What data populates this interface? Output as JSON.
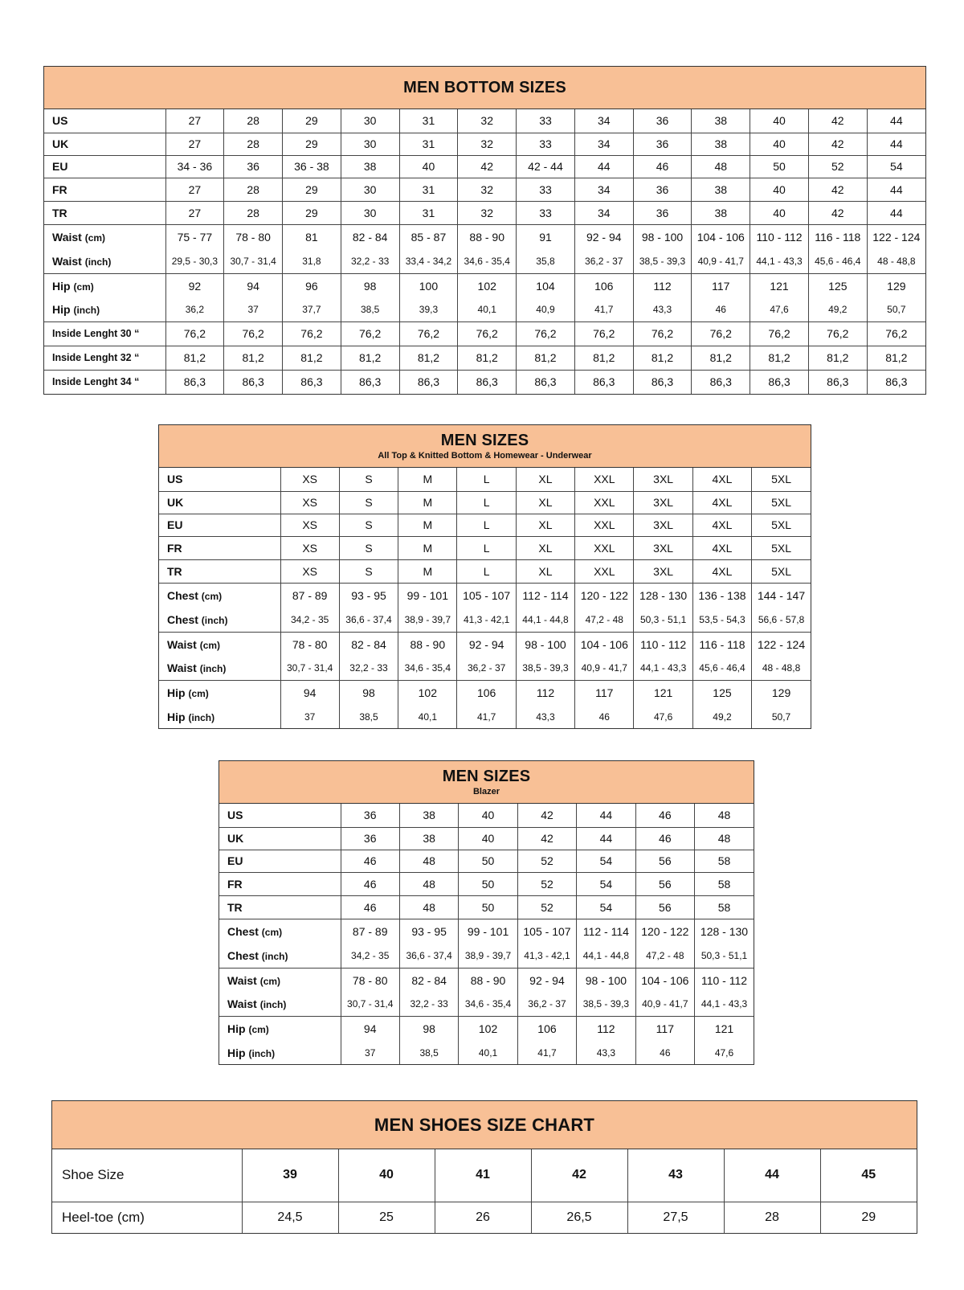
{
  "colors": {
    "header_bg": "#f8c096",
    "border": "#333333"
  },
  "tables": [
    {
      "title": "MEN BOTTOM SIZES",
      "subtitle": "",
      "rows": [
        {
          "label": "US",
          "unit": "",
          "values": [
            "27",
            "28",
            "29",
            "30",
            "31",
            "32",
            "33",
            "34",
            "36",
            "38",
            "40",
            "42",
            "44"
          ]
        },
        {
          "label": "UK",
          "unit": "",
          "values": [
            "27",
            "28",
            "29",
            "30",
            "31",
            "32",
            "33",
            "34",
            "36",
            "38",
            "40",
            "42",
            "44"
          ]
        },
        {
          "label": "EU",
          "unit": "",
          "values": [
            "34 - 36",
            "36",
            "36 - 38",
            "38",
            "40",
            "42",
            "42 - 44",
            "44",
            "46",
            "48",
            "50",
            "52",
            "54"
          ]
        },
        {
          "label": "FR",
          "unit": "",
          "values": [
            "27",
            "28",
            "29",
            "30",
            "31",
            "32",
            "33",
            "34",
            "36",
            "38",
            "40",
            "42",
            "44"
          ]
        },
        {
          "label": "TR",
          "unit": "",
          "values": [
            "27",
            "28",
            "29",
            "30",
            "31",
            "32",
            "33",
            "34",
            "36",
            "38",
            "40",
            "42",
            "44"
          ]
        },
        {
          "label": "Waist",
          "unit": "(cm)",
          "values": [
            "75 - 77",
            "78 - 80",
            "81",
            "82 - 84",
            "85 - 87",
            "88 - 90",
            "91",
            "92 - 94",
            "98 - 100",
            "104 - 106",
            "110 - 112",
            "116 - 118",
            "122 - 124"
          ]
        },
        {
          "label": "Waist",
          "unit": "(inch)",
          "values": [
            "29,5 - 30,3",
            "30,7 - 31,4",
            "31,8",
            "32,2 - 33",
            "33,4  - 34,2",
            "34,6 - 35,4",
            "35,8",
            "36,2 - 37",
            "38,5 - 39,3",
            "40,9 - 41,7",
            "44,1 - 43,3",
            "45,6 - 46,4",
            "48 - 48,8"
          ]
        },
        {
          "label": "Hip",
          "unit": "(cm)",
          "values": [
            "92",
            "94",
            "96",
            "98",
            "100",
            "102",
            "104",
            "106",
            "112",
            "117",
            "121",
            "125",
            "129"
          ]
        },
        {
          "label": "Hip",
          "unit": "(inch)",
          "values": [
            "36,2",
            "37",
            "37,7",
            "38,5",
            "39,3",
            "40,1",
            "40,9",
            "41,7",
            "43,3",
            "46",
            "47,6",
            "49,2",
            "50,7"
          ]
        },
        {
          "label": "Inside Lenght 30 “",
          "unit": "",
          "values": [
            "76,2",
            "76,2",
            "76,2",
            "76,2",
            "76,2",
            "76,2",
            "76,2",
            "76,2",
            "76,2",
            "76,2",
            "76,2",
            "76,2",
            "76,2"
          ]
        },
        {
          "label": "Inside Lenght 32 “",
          "unit": "",
          "values": [
            "81,2",
            "81,2",
            "81,2",
            "81,2",
            "81,2",
            "81,2",
            "81,2",
            "81,2",
            "81,2",
            "81,2",
            "81,2",
            "81,2",
            "81,2"
          ]
        },
        {
          "label": "Inside Lenght 34 “",
          "unit": "",
          "values": [
            "86,3",
            "86,3",
            "86,3",
            "86,3",
            "86,3",
            "86,3",
            "86,3",
            "86,3",
            "86,3",
            "86,3",
            "86,3",
            "86,3",
            "86,3"
          ]
        }
      ]
    },
    {
      "title": "MEN SIZES",
      "subtitle": "All Top & Knitted Bottom & Homewear - Underwear",
      "rows": [
        {
          "label": "US",
          "unit": "",
          "values": [
            "XS",
            "S",
            "M",
            "L",
            "XL",
            "XXL",
            "3XL",
            "4XL",
            "5XL"
          ]
        },
        {
          "label": "UK",
          "unit": "",
          "values": [
            "XS",
            "S",
            "M",
            "L",
            "XL",
            "XXL",
            "3XL",
            "4XL",
            "5XL"
          ]
        },
        {
          "label": "EU",
          "unit": "",
          "values": [
            "XS",
            "S",
            "M",
            "L",
            "XL",
            "XXL",
            "3XL",
            "4XL",
            "5XL"
          ]
        },
        {
          "label": "FR",
          "unit": "",
          "values": [
            "XS",
            "S",
            "M",
            "L",
            "XL",
            "XXL",
            "3XL",
            "4XL",
            "5XL"
          ]
        },
        {
          "label": "TR",
          "unit": "",
          "values": [
            "XS",
            "S",
            "M",
            "L",
            "XL",
            "XXL",
            "3XL",
            "4XL",
            "5XL"
          ]
        },
        {
          "label": "Chest",
          "unit": "(cm)",
          "values": [
            "87 - 89",
            "93 - 95",
            "99 - 101",
            "105 - 107",
            "112 - 114",
            "120 - 122",
            "128 - 130",
            "136 - 138",
            "144 - 147"
          ]
        },
        {
          "label": "Chest",
          "unit": "(inch)",
          "values": [
            "34,2 - 35",
            "36,6 - 37,4",
            "38,9 - 39,7",
            "41,3 - 42,1",
            "44,1 - 44,8",
            "47,2 - 48",
            "50,3 - 51,1",
            "53,5 - 54,3",
            "56,6 - 57,8"
          ]
        },
        {
          "label": "Waist",
          "unit": "(cm)",
          "values": [
            "78 - 80",
            "82 - 84",
            "88 - 90",
            "92 - 94",
            "98 - 100",
            "104 - 106",
            "110 - 112",
            "116 - 118",
            "122 - 124"
          ]
        },
        {
          "label": "Waist",
          "unit": "(inch)",
          "values": [
            "30,7 - 31,4",
            "32,2 - 33",
            "34,6 - 35,4",
            "36,2 - 37",
            "38,5 - 39,3",
            "40,9 - 41,7",
            "44,1 - 43,3",
            "45,6 - 46,4",
            "48 - 48,8"
          ]
        },
        {
          "label": "Hip",
          "unit": "(cm)",
          "values": [
            "94",
            "98",
            "102",
            "106",
            "112",
            "117",
            "121",
            "125",
            "129"
          ]
        },
        {
          "label": "Hip",
          "unit": "(inch)",
          "values": [
            "37",
            "38,5",
            "40,1",
            "41,7",
            "43,3",
            "46",
            "47,6",
            "49,2",
            "50,7"
          ]
        }
      ]
    },
    {
      "title": "MEN SIZES",
      "subtitle": "Blazer",
      "rows": [
        {
          "label": "US",
          "unit": "",
          "values": [
            "36",
            "38",
            "40",
            "42",
            "44",
            "46",
            "48"
          ]
        },
        {
          "label": "UK",
          "unit": "",
          "values": [
            "36",
            "38",
            "40",
            "42",
            "44",
            "46",
            "48"
          ]
        },
        {
          "label": "EU",
          "unit": "",
          "values": [
            "46",
            "48",
            "50",
            "52",
            "54",
            "56",
            "58"
          ]
        },
        {
          "label": "FR",
          "unit": "",
          "values": [
            "46",
            "48",
            "50",
            "52",
            "54",
            "56",
            "58"
          ]
        },
        {
          "label": "TR",
          "unit": "",
          "values": [
            "46",
            "48",
            "50",
            "52",
            "54",
            "56",
            "58"
          ]
        },
        {
          "label": "Chest",
          "unit": "(cm)",
          "values": [
            "87 - 89",
            "93 - 95",
            "99 - 101",
            "105 - 107",
            "112 - 114",
            "120 - 122",
            "128 - 130"
          ]
        },
        {
          "label": "Chest",
          "unit": "(inch)",
          "values": [
            "34,2 - 35",
            "36,6 - 37,4",
            "38,9 - 39,7",
            "41,3 - 42,1",
            "44,1 - 44,8",
            "47,2 - 48",
            "50,3 - 51,1"
          ]
        },
        {
          "label": "Waist",
          "unit": "(cm)",
          "values": [
            "78 - 80",
            "82 - 84",
            "88 - 90",
            "92 - 94",
            "98 - 100",
            "104 - 106",
            "110 - 112"
          ]
        },
        {
          "label": "Waist",
          "unit": "(inch)",
          "values": [
            "30,7 - 31,4",
            "32,2 - 33",
            "34,6 - 35,4",
            "36,2 - 37",
            "38,5 - 39,3",
            "40,9 - 41,7",
            "44,1 - 43,3"
          ]
        },
        {
          "label": "Hip",
          "unit": "(cm)",
          "values": [
            "94",
            "98",
            "102",
            "106",
            "112",
            "117",
            "121"
          ]
        },
        {
          "label": "Hip",
          "unit": "(inch)",
          "values": [
            "37",
            "38,5",
            "40,1",
            "41,7",
            "43,3",
            "46",
            "47,6"
          ]
        }
      ]
    },
    {
      "title": "MEN SHOES SIZE CHART",
      "subtitle": "",
      "rows": [
        {
          "label": "Shoe Size",
          "unit": "",
          "values": [
            "39",
            "40",
            "41",
            "42",
            "43",
            "44",
            "45"
          ]
        },
        {
          "label": "Heel-toe (cm)",
          "unit": "",
          "values": [
            "24,5",
            "25",
            "26",
            "26,5",
            "27,5",
            "28",
            "29"
          ]
        }
      ]
    }
  ]
}
